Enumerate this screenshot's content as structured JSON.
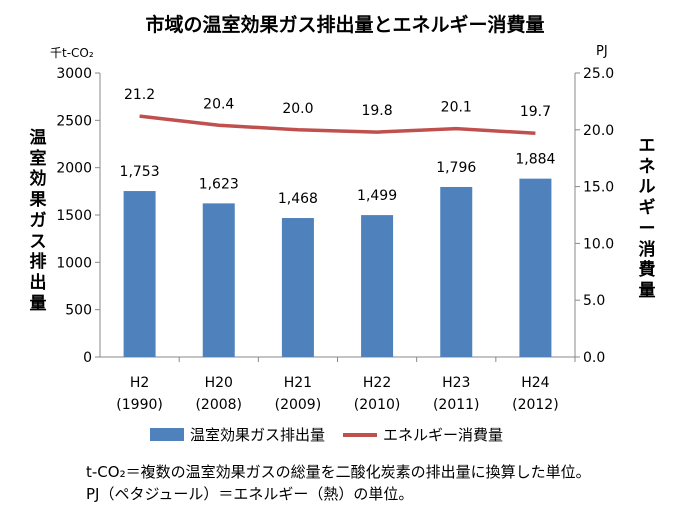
{
  "chart_data": {
    "type": "bar+line",
    "title": "市域の温室効果ガス排出量とエネルギー消費量",
    "categories": [
      [
        "H2",
        "(1990)"
      ],
      [
        "H20",
        "(2008)"
      ],
      [
        "H21",
        "(2009)"
      ],
      [
        "H22",
        "(2010)"
      ],
      [
        "H23",
        "(2011)"
      ],
      [
        "H24",
        "(2012)"
      ]
    ],
    "series": [
      {
        "name": "温室効果ガス排出量",
        "type": "bar",
        "axis": "left",
        "color": "#4F81BD",
        "values": [
          1753,
          1623,
          1468,
          1499,
          1796,
          1884
        ],
        "labels": [
          "1,753",
          "1,623",
          "1,468",
          "1,499",
          "1,796",
          "1,884"
        ]
      },
      {
        "name": "エネルギー消費量",
        "type": "line",
        "axis": "right",
        "color": "#C0504D",
        "values": [
          21.2,
          20.4,
          20.0,
          19.8,
          20.1,
          19.7
        ],
        "labels": [
          "21.2",
          "20.4",
          "20.0",
          "19.8",
          "20.1",
          "19.7"
        ]
      }
    ],
    "y_left": {
      "label": "温室効果ガス排出量",
      "unit": "千t-CO₂",
      "range": [
        0,
        3000
      ],
      "ticks": [
        "0",
        "500",
        "1000",
        "1500",
        "2000",
        "2500",
        "3000"
      ]
    },
    "y_right": {
      "label": "エネルギー消費量",
      "unit": "PJ",
      "range": [
        0,
        25
      ],
      "ticks": [
        "0.0",
        "5.0",
        "10.0",
        "15.0",
        "20.0",
        "25.0"
      ]
    },
    "grid": false,
    "legend": "bottom"
  },
  "notes": [
    "t-CO₂＝複数の温室効果ガスの総量を二酸化炭素の排出量に換算した単位。",
    "PJ（ペタジュール）＝エネルギー（熱）の単位。"
  ]
}
